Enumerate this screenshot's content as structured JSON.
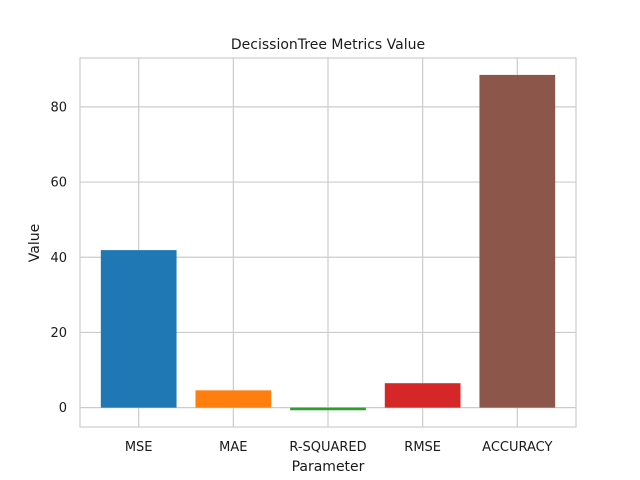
{
  "chart_data": {
    "type": "bar",
    "title": "DecissionTree Metrics Value",
    "xlabel": "Parameter",
    "ylabel": "Value",
    "categories": [
      "MSE",
      "MAE",
      "R-SQUARED",
      "RMSE",
      "ACCURACY"
    ],
    "values": [
      41.9,
      4.6,
      -0.7,
      6.5,
      88.5
    ],
    "colors": [
      "#1f77b4",
      "#ff7f0e",
      "#2ca02c",
      "#d62728",
      "#8c564b"
    ],
    "ylim": [
      -5.15,
      93.0
    ],
    "yticks": [
      0,
      20,
      40,
      60,
      80
    ],
    "grid": true,
    "legend": "none"
  }
}
